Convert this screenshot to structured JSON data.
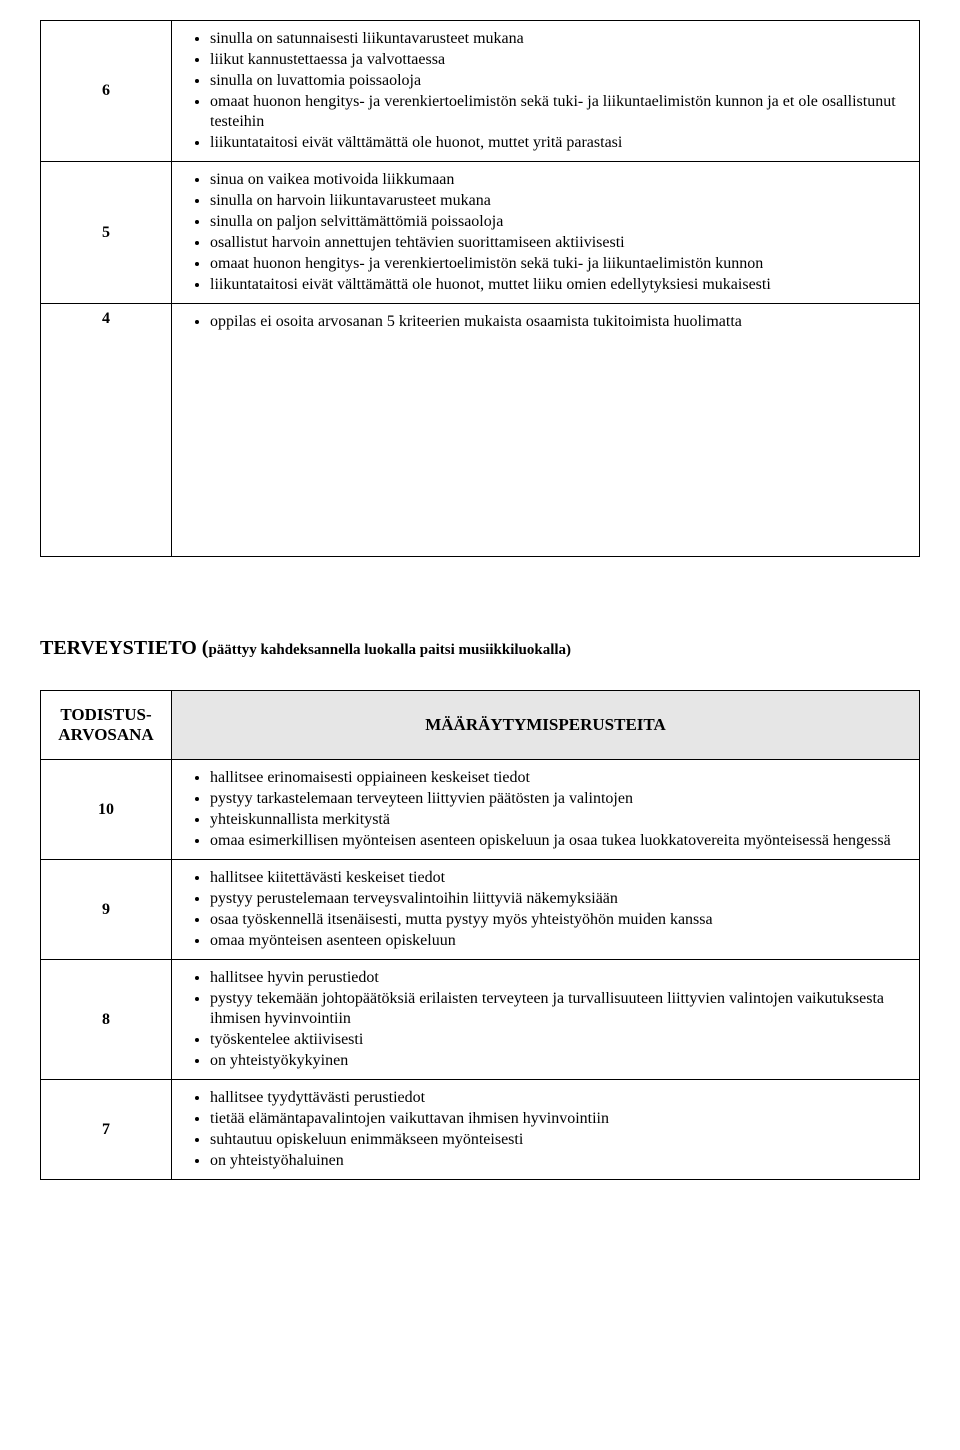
{
  "upper_table": {
    "rows": [
      {
        "grade": "6",
        "items": [
          "sinulla on satunnaisesti liikuntavarusteet mukana",
          "liikut kannustettaessa ja valvottaessa",
          "sinulla on luvattomia poissaoloja",
          "omaat huonon hengitys- ja verenkiertoelimistön sekä tuki- ja liikuntaelimistön kunnon ja et ole osallistunut testeihin",
          "liikuntataitosi eivät välttämättä ole huonot, muttet yritä parastasi"
        ]
      },
      {
        "grade": "5",
        "items": [
          "sinua on vaikea motivoida liikkumaan",
          "sinulla on harvoin liikuntavarusteet mukana",
          "sinulla on paljon selvittämättömiä poissaoloja",
          "osallistut harvoin annettujen tehtävien suorittamiseen aktiivisesti",
          "omaat huonon hengitys- ja verenkiertoelimistön sekä tuki- ja liikuntaelimistön kunnon",
          "liikuntataitosi eivät välttämättä ole huonot, muttet liiku omien edellytyksiesi mukaisesti"
        ]
      },
      {
        "grade": "4",
        "items": [
          "oppilas ei osoita arvosanan 5 kriteerien mukaista osaamista tukitoimista huolimatta"
        ]
      }
    ]
  },
  "section": {
    "title_main": "TERVEYSTIETO (",
    "title_sub": "päättyy kahdeksannella luokalla paitsi musiikkiluokalla)"
  },
  "lower_table": {
    "head_left": "TODISTUS-ARVOSANA",
    "head_right": "MÄÄRÄYTYMISPERUSTEITA",
    "rows": [
      {
        "grade": "10",
        "items": [
          "hallitsee erinomaisesti oppiaineen keskeiset tiedot",
          "pystyy tarkastelemaan terveyteen liittyvien päätösten ja valintojen",
          "yhteiskunnallista merkitystä",
          "omaa esimerkillisen myönteisen asenteen opiskeluun ja osaa tukea luokkatovereita myönteisessä hengessä"
        ]
      },
      {
        "grade": "9",
        "items": [
          "hallitsee kiitettävästi keskeiset tiedot",
          "pystyy perustelemaan terveysvalintoihin liittyviä näkemyksiään",
          "osaa työskennellä itsenäisesti, mutta pystyy myös yhteistyöhön muiden kanssa",
          "omaa myönteisen asenteen opiskeluun"
        ]
      },
      {
        "grade": "8",
        "items": [
          "hallitsee hyvin perustiedot",
          "pystyy tekemään johtopäätöksiä erilaisten terveyteen ja turvallisuuteen liittyvien valintojen vaikutuksesta ihmisen hyvinvointiin",
          "työskentelee aktiivisesti",
          "on yhteistyökykyinen"
        ]
      },
      {
        "grade": "7",
        "items": [
          "hallitsee tyydyttävästi perustiedot",
          "tietää elämäntapavalintojen vaikuttavan ihmisen hyvinvointiin",
          "suhtautuu opiskeluun enimmäkseen myönteisesti",
          "on yhteistyöhaluinen"
        ]
      }
    ]
  }
}
